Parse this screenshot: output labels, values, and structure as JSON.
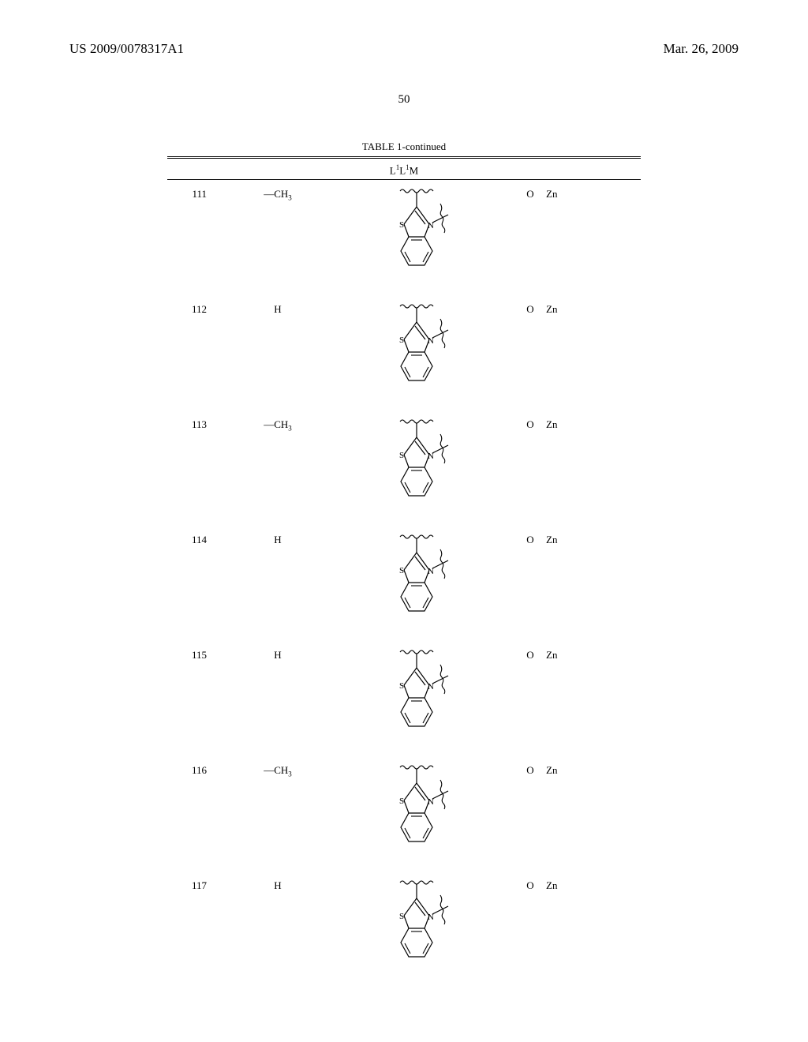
{
  "header": {
    "patent_number": "US 2009/0078317A1",
    "date": "Mar. 26, 2009"
  },
  "page_number": "50",
  "table": {
    "caption": "TABLE 1-continued",
    "header_formula": "L¹L¹M",
    "rows": [
      {
        "idx": "111",
        "r": "—CH",
        "r_sub": "3",
        "o": "O",
        "m": "Zn"
      },
      {
        "idx": "112",
        "r": "H",
        "r_sub": "",
        "o": "O",
        "m": "Zn"
      },
      {
        "idx": "113",
        "r": "—CH",
        "r_sub": "3",
        "o": "O",
        "m": "Zn"
      },
      {
        "idx": "114",
        "r": "H",
        "r_sub": "",
        "o": "O",
        "m": "Zn"
      },
      {
        "idx": "115",
        "r": "H",
        "r_sub": "",
        "o": "O",
        "m": "Zn"
      },
      {
        "idx": "116",
        "r": "—CH",
        "r_sub": "3",
        "o": "O",
        "m": "Zn"
      },
      {
        "idx": "117",
        "r": "H",
        "r_sub": "",
        "o": "O",
        "m": "Zn"
      }
    ]
  },
  "structure_svg": {
    "stroke_color": "#000000",
    "stroke_width": 1.2,
    "atom_font_size": 11
  }
}
